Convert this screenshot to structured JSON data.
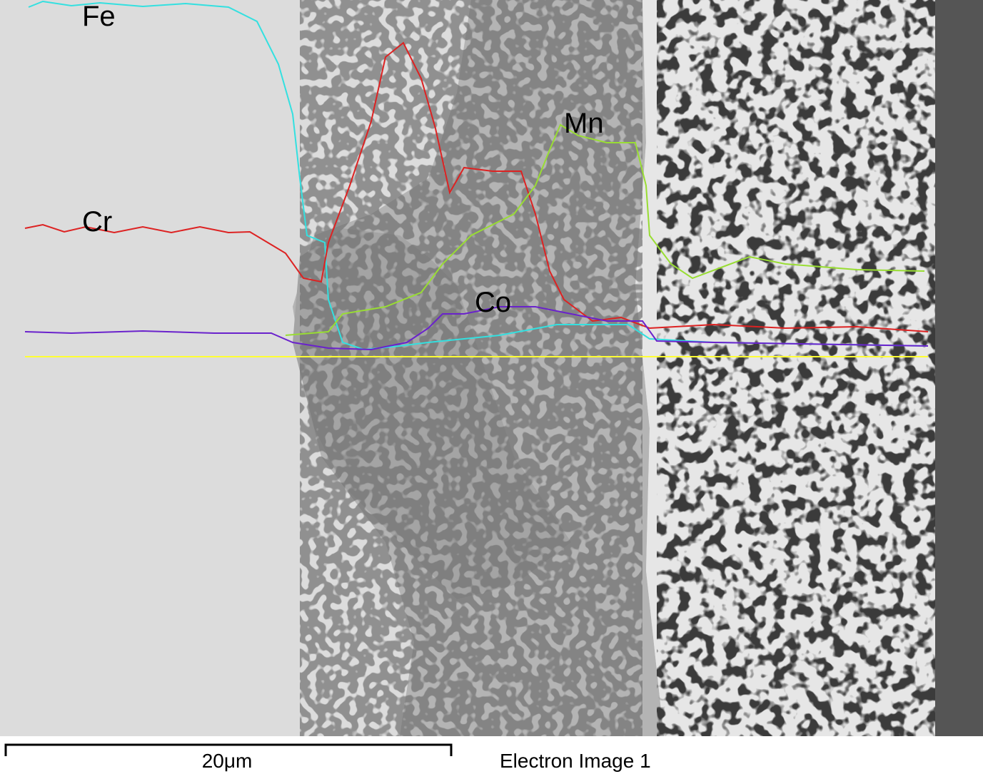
{
  "element_labels": [
    "Fe",
    "Cr",
    "Mn",
    "Co"
  ],
  "scale_bar": {
    "label": "20μm"
  },
  "caption": "Electron Image 1"
}
